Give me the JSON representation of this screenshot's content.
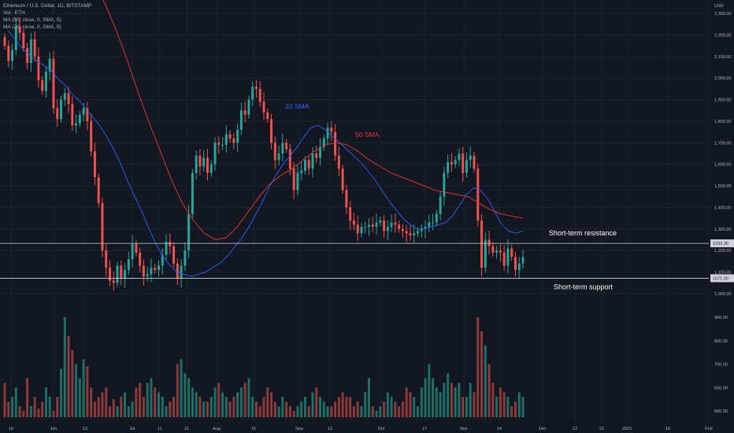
{
  "header": {
    "title": "Ethereum / U.S. Dollar, 1D, BITSTAMP",
    "volume_label": "Vol · ETH",
    "ma50_label": "MA (50, close, 0, SMA, 5)",
    "ma20_label": "MA (20, close, 0, SMA, 5)"
  },
  "chart_data": {
    "type": "candlestick",
    "currency": "USD",
    "ylim": [
      980,
      2300
    ],
    "y_ticks": [
      "2,300.00",
      "2,200.00",
      "2,100.00",
      "2,000.00",
      "1,900.00",
      "1,800.00",
      "1,700.00",
      "1,600.00",
      "1,500.00",
      "1,400.00",
      "1,300.00",
      "1,200.00",
      "1,100.00",
      "1,000.00"
    ],
    "volume_ticks": [
      "900.00",
      "800.00",
      "700.00",
      "600.00",
      "500.00"
    ],
    "x_ticks": [
      "16",
      "Jun",
      "13",
      "Jul",
      "11",
      "21",
      "Aug",
      "15",
      "Sep",
      "12",
      "Oct",
      "17",
      "Nov",
      "14",
      "Dec",
      "12",
      "22",
      "2023",
      "16",
      "Feb"
    ],
    "closes": [
      2150,
      2080,
      2130,
      2240,
      2210,
      2140,
      2070,
      2180,
      2100,
      1990,
      1940,
      2030,
      2090,
      1860,
      1810,
      1900,
      1930,
      1880,
      1780,
      1790,
      1830,
      1860,
      1800,
      1660,
      1540,
      1420,
      1200,
      1120,
      1060,
      1050,
      1130,
      1070,
      1110,
      1160,
      1230,
      1190,
      1130,
      1080,
      1090,
      1120,
      1110,
      1130,
      1180,
      1240,
      1220,
      1140,
      1070,
      1130,
      1200,
      1370,
      1560,
      1640,
      1590,
      1630,
      1560,
      1600,
      1700,
      1690,
      1690,
      1740,
      1720,
      1700,
      1760,
      1850,
      1830,
      1900,
      1960,
      1950,
      1890,
      1840,
      1810,
      1700,
      1620,
      1650,
      1700,
      1670,
      1580,
      1480,
      1560,
      1570,
      1620,
      1580,
      1650,
      1630,
      1680,
      1720,
      1770,
      1750,
      1640,
      1580,
      1480,
      1400,
      1340,
      1320,
      1280,
      1310,
      1310,
      1320,
      1310,
      1330,
      1340,
      1290,
      1310,
      1330,
      1320,
      1300,
      1290,
      1280,
      1270,
      1280,
      1290,
      1300,
      1310,
      1330,
      1330,
      1370,
      1450,
      1560,
      1610,
      1600,
      1620,
      1650,
      1560,
      1620,
      1640,
      1580,
      1340,
      1120,
      1250,
      1220,
      1190,
      1200,
      1190,
      1130,
      1210,
      1170,
      1110,
      1140,
      1170
    ],
    "sma20": [
      2220,
      2180,
      2140,
      2110,
      2080,
      2060,
      2040,
      2000,
      1970,
      1930,
      1900,
      1860,
      1820,
      1780,
      1730,
      1670,
      1600,
      1520,
      1450,
      1380,
      1300,
      1230,
      1170,
      1130,
      1100,
      1090,
      1080,
      1090,
      1100,
      1120,
      1140,
      1170,
      1210,
      1250,
      1300,
      1360,
      1420,
      1490,
      1550,
      1600,
      1640,
      1680,
      1730,
      1770,
      1780,
      1760,
      1730,
      1700,
      1670,
      1640,
      1610,
      1570,
      1530,
      1480,
      1430,
      1390,
      1350,
      1320,
      1300,
      1300,
      1310,
      1320,
      1330,
      1360,
      1410,
      1460,
      1490,
      1480,
      1440,
      1380,
      1320,
      1290,
      1280,
      1290
    ],
    "sma50": [
      2580,
      2520,
      2440,
      2340,
      2220,
      2080,
      1930,
      1790,
      1660,
      1530,
      1420,
      1340,
      1280,
      1250,
      1260,
      1310,
      1380,
      1450,
      1510,
      1550,
      1580,
      1620,
      1660,
      1690,
      1700,
      1690,
      1660,
      1620,
      1590,
      1560,
      1540,
      1520,
      1500,
      1480,
      1470,
      1460,
      1450,
      1420,
      1390,
      1370,
      1360,
      1350
    ],
    "volumes": [
      620,
      540,
      560,
      600,
      520,
      500,
      640,
      520,
      560,
      510,
      540,
      600,
      560,
      500,
      560,
      680,
      900,
      820,
      760,
      700,
      640,
      720,
      690,
      600,
      540,
      560,
      580,
      600,
      520,
      550,
      520,
      560,
      580,
      520,
      540,
      600,
      620,
      560,
      620,
      640,
      600,
      580,
      560,
      520,
      540,
      560,
      700,
      720,
      660,
      640,
      600,
      580,
      560,
      540,
      540,
      560,
      600,
      620,
      580,
      560,
      540,
      560,
      580,
      600,
      620,
      640,
      560,
      540,
      520,
      560,
      600,
      580,
      540,
      520,
      560,
      540,
      520,
      500,
      520,
      540,
      560,
      520,
      580,
      600,
      560,
      540,
      520,
      520,
      540,
      560,
      580,
      560,
      560,
      520,
      540,
      520,
      580,
      640,
      520,
      500,
      520,
      540,
      580,
      560,
      540,
      520,
      540,
      600,
      580,
      560,
      520,
      600,
      640,
      700,
      640,
      600,
      580,
      620,
      660,
      620,
      600,
      620,
      560,
      560,
      620,
      580,
      900,
      840,
      780,
      700,
      620,
      560,
      600,
      580,
      560,
      520,
      540,
      580,
      560
    ],
    "levels": [
      {
        "label": "Short-term resistance",
        "value": 1233.3,
        "tag": "1233.30"
      },
      {
        "label": "Short-term support",
        "value": 1071.5,
        "tag": "1071.50"
      }
    ],
    "series_labels": {
      "sma20": "20 SMA",
      "sma50": "50 SMA"
    },
    "colors": {
      "up": "#26a69a",
      "down": "#ef5350",
      "sma20": "#2962ff",
      "sma50": "#e53935",
      "vol_up": "#1f6f66",
      "vol_down": "#8c3a3a"
    }
  }
}
